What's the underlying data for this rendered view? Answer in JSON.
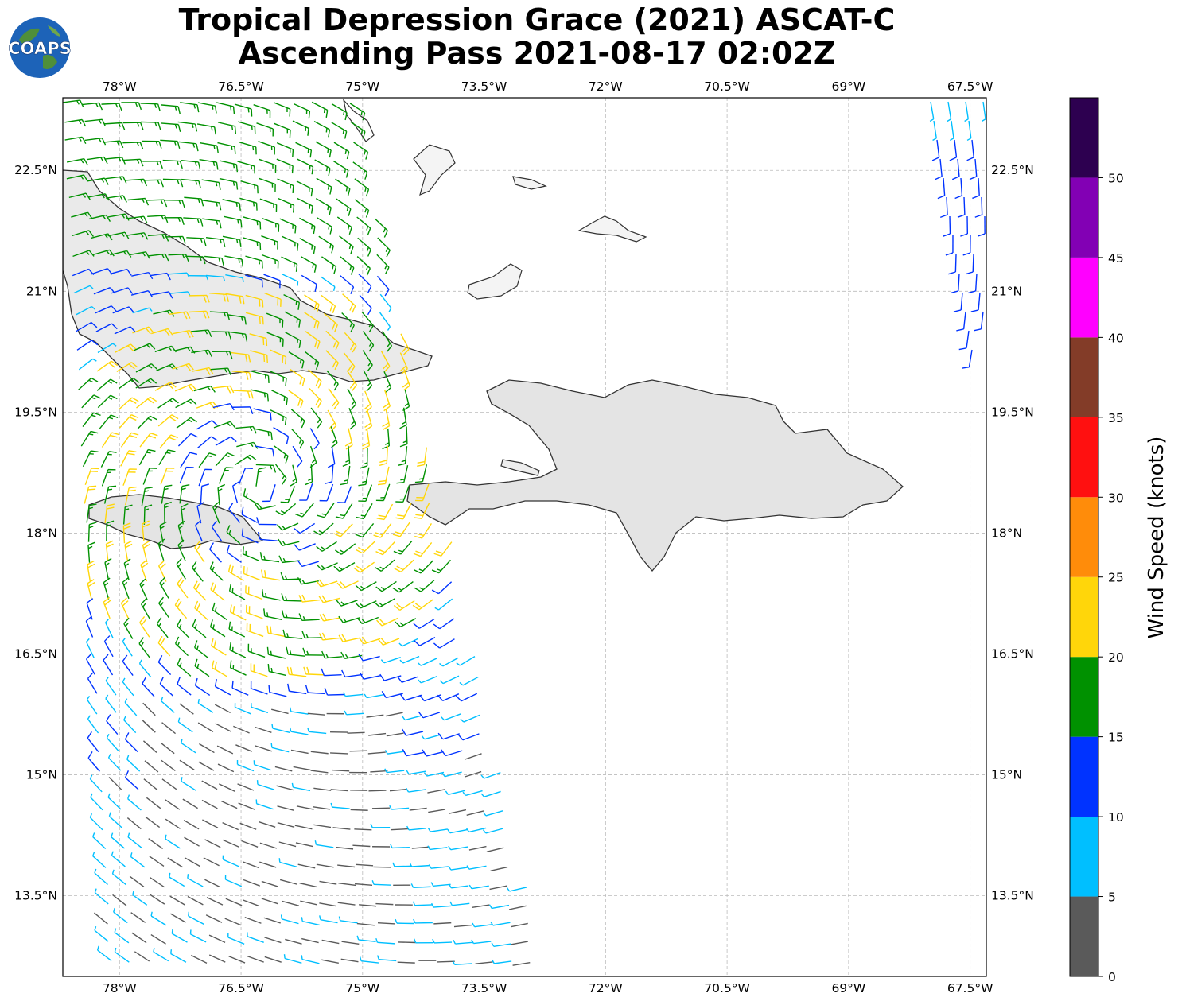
{
  "title": {
    "line1": "Tropical Depression Grace (2021) ASCAT-C",
    "line2": "Ascending Pass 2021-08-17 02:02Z"
  },
  "logo": {
    "text": "COAPS",
    "icon": "globe-logo-icon"
  },
  "map": {
    "lon_range": [
      -78.7,
      -67.3
    ],
    "lat_range": [
      12.5,
      23.4
    ],
    "lon_ticks": [
      {
        "value": -78,
        "label": "78°W"
      },
      {
        "value": -76.5,
        "label": "76.5°W"
      },
      {
        "value": -75,
        "label": "75°W"
      },
      {
        "value": -73.5,
        "label": "73.5°W"
      },
      {
        "value": -72,
        "label": "72°W"
      },
      {
        "value": -70.5,
        "label": "70.5°W"
      },
      {
        "value": -69,
        "label": "69°W"
      },
      {
        "value": -67.5,
        "label": "67.5°W"
      }
    ],
    "lat_ticks": [
      {
        "value": 22.5,
        "label": "22.5°N"
      },
      {
        "value": 21,
        "label": "21°N"
      },
      {
        "value": 19.5,
        "label": "19.5°N"
      },
      {
        "value": 18,
        "label": "18°N"
      },
      {
        "value": 16.5,
        "label": "16.5°N"
      },
      {
        "value": 15,
        "label": "15°N"
      },
      {
        "value": 13.5,
        "label": "13.5°N"
      }
    ],
    "grid": true,
    "grid_color": "#bbbbbb",
    "coast_color": "#333333",
    "land_shade": "#e4e4e4"
  },
  "colorbar": {
    "label": "Wind Speed (knots)",
    "bins": [
      {
        "min": 0,
        "max": 5,
        "color": "#5a5a5a"
      },
      {
        "min": 5,
        "max": 10,
        "color": "#00bfff"
      },
      {
        "min": 10,
        "max": 15,
        "color": "#0033ff"
      },
      {
        "min": 15,
        "max": 20,
        "color": "#009100"
      },
      {
        "min": 20,
        "max": 25,
        "color": "#ffd60a"
      },
      {
        "min": 25,
        "max": 30,
        "color": "#ff8c0a"
      },
      {
        "min": 30,
        "max": 35,
        "color": "#ff1010"
      },
      {
        "min": 35,
        "max": 40,
        "color": "#833c28"
      },
      {
        "min": 40,
        "max": 45,
        "color": "#ff00ff"
      },
      {
        "min": 45,
        "max": 50,
        "color": "#8200b4"
      },
      {
        "min": 50,
        "max": 55,
        "color": "#2d0050"
      }
    ],
    "tick_labels": [
      "0",
      "5",
      "10",
      "15",
      "20",
      "25",
      "30",
      "35",
      "40",
      "45",
      "50"
    ]
  }
}
